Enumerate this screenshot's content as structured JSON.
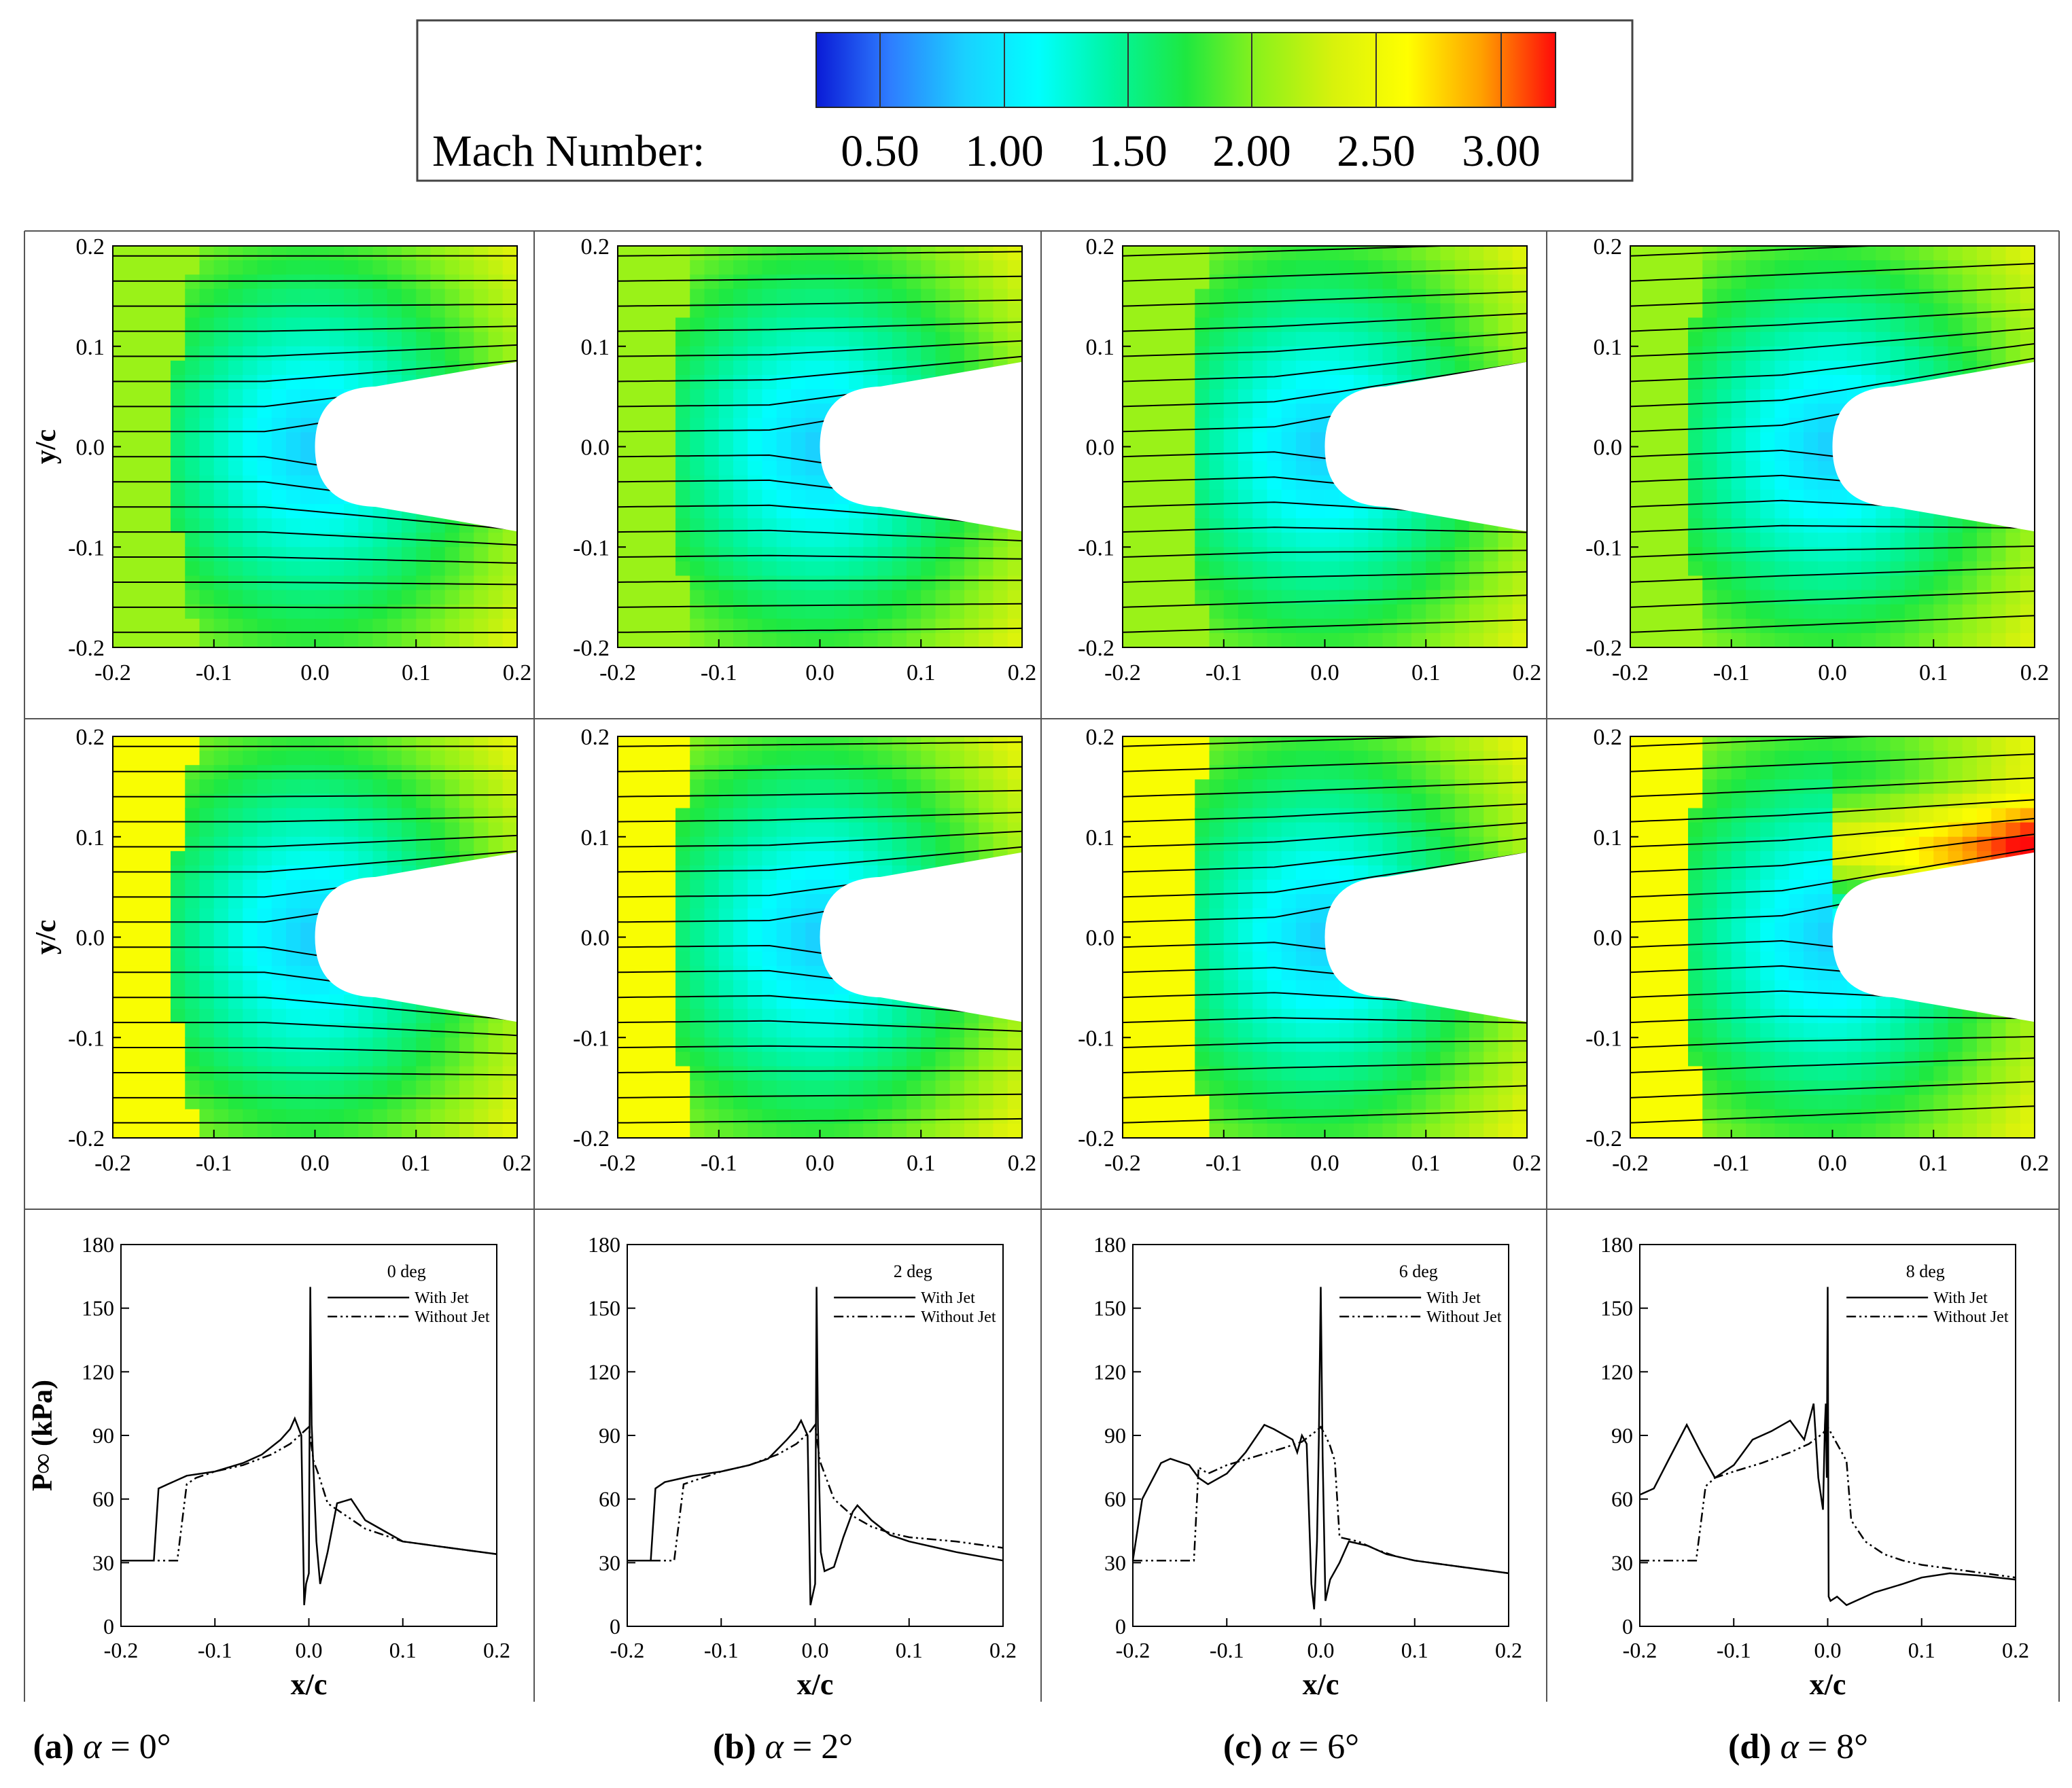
{
  "colorbar": {
    "label": "Mach Number:",
    "ticks": [
      "0.50",
      "1.00",
      "1.50",
      "2.00",
      "2.50",
      "3.00"
    ],
    "range": [
      0.0,
      3.0
    ],
    "colors": [
      "#0a1bd6",
      "#2e7dff",
      "#1ad0ff",
      "#00ffff",
      "#00f5a0",
      "#1ee840",
      "#8ef21a",
      "#d8f20c",
      "#ffff00",
      "#ffa000",
      "#ff0a0a"
    ]
  },
  "axes": {
    "x_label": "x/c",
    "y_label_contour": "y/c",
    "y_label_pressure": "P∞ (kPa)",
    "contour_x_ticks": [
      "-0.2",
      "-0.1",
      "0.0",
      "0.1",
      "0.2"
    ],
    "contour_y_ticks": [
      "0.2",
      "0.1",
      "0.0",
      "-0.1",
      "-0.2"
    ],
    "pressure_x_ticks": [
      "-0.2",
      "-0.1",
      "0.0",
      "0.1",
      "0.2"
    ],
    "pressure_y_ticks": [
      "180",
      "150",
      "120",
      "90",
      "60",
      "30",
      "0"
    ]
  },
  "legend": {
    "with_jet": "With Jet",
    "without_jet": "Without Jet"
  },
  "captions": [
    {
      "letter": "(a)",
      "alpha": "α",
      "eq": " = ",
      "value": "0°"
    },
    {
      "letter": "(b)",
      "alpha": "α",
      "eq": " = ",
      "value": "2°"
    },
    {
      "letter": "(c)",
      "alpha": "α",
      "eq": " = ",
      "value": "6°"
    },
    {
      "letter": "(d)",
      "alpha": "α",
      "eq": " = ",
      "value": "8°"
    }
  ],
  "chart_data": [
    {
      "type": "line",
      "title": "0 deg",
      "xlabel": "x/c",
      "ylabel": "P∞ (kPa)",
      "xlim": [
        -0.2,
        0.2
      ],
      "ylim": [
        0,
        180
      ],
      "series": [
        {
          "name": "With Jet",
          "x": [
            -0.2,
            -0.165,
            -0.16,
            -0.15,
            -0.13,
            -0.1,
            -0.07,
            -0.05,
            -0.03,
            -0.02,
            -0.015,
            -0.008,
            -0.005,
            -0.003,
            0.0,
            0.0015,
            0.003,
            0.008,
            0.012,
            0.02,
            0.03,
            0.045,
            0.06,
            0.08,
            0.1,
            0.15,
            0.2
          ],
          "y": [
            31,
            31,
            65,
            67,
            71,
            73,
            77,
            81,
            88,
            93,
            98,
            90,
            10,
            20,
            25,
            160,
            95,
            40,
            20,
            35,
            58,
            60,
            50,
            45,
            40,
            37,
            34
          ]
        },
        {
          "name": "Without Jet",
          "x": [
            -0.2,
            -0.14,
            -0.13,
            -0.12,
            -0.1,
            -0.07,
            -0.04,
            -0.02,
            -0.005,
            0.0,
            0.005,
            0.01,
            0.02,
            0.04,
            0.06,
            0.08,
            0.1,
            0.15,
            0.2
          ],
          "y": [
            31,
            31,
            67,
            70,
            73,
            76,
            81,
            86,
            92,
            94,
            78,
            72,
            58,
            52,
            46,
            43,
            40,
            37,
            34
          ]
        }
      ]
    },
    {
      "type": "line",
      "title": "2 deg",
      "xlabel": "x/c",
      "ylabel": "P∞ (kPa)",
      "xlim": [
        -0.2,
        0.2
      ],
      "ylim": [
        0,
        180
      ],
      "series": [
        {
          "name": "With Jet",
          "x": [
            -0.2,
            -0.175,
            -0.17,
            -0.16,
            -0.13,
            -0.1,
            -0.07,
            -0.05,
            -0.03,
            -0.02,
            -0.015,
            -0.008,
            -0.005,
            0.0,
            0.0015,
            0.003,
            0.006,
            0.01,
            0.02,
            0.03,
            0.04,
            0.045,
            0.06,
            0.08,
            0.1,
            0.15,
            0.2
          ],
          "y": [
            31,
            31,
            65,
            68,
            71,
            73,
            76,
            79,
            88,
            93,
            97,
            90,
            10,
            20,
            160,
            95,
            35,
            26,
            28,
            42,
            54,
            57,
            50,
            43,
            40,
            35,
            31
          ]
        },
        {
          "name": "Without Jet",
          "x": [
            -0.2,
            -0.15,
            -0.14,
            -0.12,
            -0.1,
            -0.07,
            -0.04,
            -0.02,
            -0.005,
            0.0,
            0.005,
            0.01,
            0.02,
            0.04,
            0.06,
            0.08,
            0.1,
            0.15,
            0.2
          ],
          "y": [
            31,
            31,
            67,
            70,
            73,
            76,
            81,
            86,
            92,
            95,
            78,
            72,
            60,
            52,
            47,
            44,
            42,
            40,
            37
          ]
        }
      ]
    },
    {
      "type": "line",
      "title": "6 deg",
      "xlabel": "x/c",
      "ylabel": "P∞ (kPa)",
      "xlim": [
        -0.2,
        0.2
      ],
      "ylim": [
        0,
        180
      ],
      "series": [
        {
          "name": "With Jet",
          "x": [
            -0.2,
            -0.19,
            -0.17,
            -0.16,
            -0.14,
            -0.13,
            -0.12,
            -0.1,
            -0.08,
            -0.06,
            -0.05,
            -0.03,
            -0.025,
            -0.02,
            -0.015,
            -0.01,
            -0.007,
            -0.004,
            -0.002,
            0.0,
            0.002,
            0.005,
            0.01,
            0.02,
            0.03,
            0.05,
            0.07,
            0.1,
            0.15,
            0.2
          ],
          "y": [
            31,
            60,
            77,
            79,
            76,
            70,
            67,
            72,
            82,
            95,
            93,
            88,
            82,
            90,
            86,
            20,
            8,
            40,
            88,
            160,
            80,
            12,
            22,
            30,
            40,
            38,
            34,
            31,
            28,
            25
          ]
        },
        {
          "name": "Without Jet",
          "x": [
            -0.2,
            -0.135,
            -0.13,
            -0.12,
            -0.1,
            -0.07,
            -0.04,
            -0.02,
            -0.005,
            0.0,
            0.005,
            0.01,
            0.015,
            0.02,
            0.04,
            0.06,
            0.08,
            0.1,
            0.15,
            0.2
          ],
          "y": [
            31,
            31,
            75,
            72,
            76,
            80,
            84,
            87,
            92,
            94,
            90,
            85,
            78,
            42,
            40,
            36,
            33,
            31,
            28,
            25
          ]
        }
      ]
    },
    {
      "type": "line",
      "title": "8 deg",
      "xlabel": "x/c",
      "ylabel": "P∞ (kPa)",
      "xlim": [
        -0.2,
        0.2
      ],
      "ylim": [
        0,
        180
      ],
      "series": [
        {
          "name": "With Jet",
          "x": [
            -0.2,
            -0.185,
            -0.17,
            -0.15,
            -0.135,
            -0.12,
            -0.1,
            -0.08,
            -0.06,
            -0.04,
            -0.025,
            -0.015,
            -0.01,
            -0.005,
            -0.003,
            -0.002,
            -0.001,
            0.0,
            0.001,
            0.003,
            0.01,
            0.02,
            0.03,
            0.05,
            0.08,
            0.1,
            0.13,
            0.16,
            0.2
          ],
          "y": [
            62,
            65,
            78,
            95,
            82,
            70,
            76,
            88,
            92,
            97,
            88,
            105,
            70,
            55,
            95,
            105,
            70,
            160,
            14,
            12,
            14,
            10,
            12,
            16,
            20,
            23,
            25,
            24,
            22
          ]
        },
        {
          "name": "Without Jet",
          "x": [
            -0.2,
            -0.14,
            -0.13,
            -0.12,
            -0.1,
            -0.07,
            -0.04,
            -0.02,
            -0.005,
            0.0,
            0.005,
            0.01,
            0.02,
            0.025,
            0.04,
            0.06,
            0.08,
            0.1,
            0.15,
            0.2
          ],
          "y": [
            31,
            31,
            66,
            70,
            73,
            77,
            82,
            86,
            91,
            94,
            90,
            86,
            78,
            50,
            40,
            34,
            31,
            29,
            26,
            23
          ]
        }
      ]
    }
  ]
}
